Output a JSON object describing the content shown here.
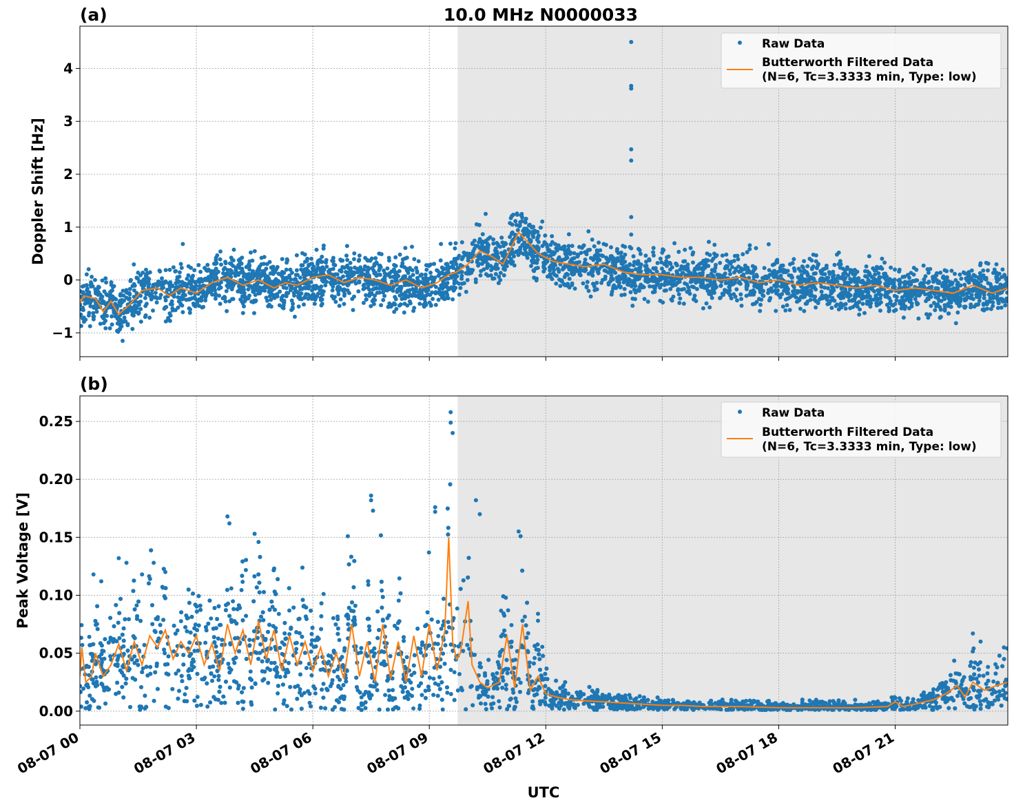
{
  "figure": {
    "title": "10.0 MHz N0000033",
    "xlabel": "UTC",
    "x_tick_labels": [
      "08-07 00",
      "08-07 03",
      "08-07 06",
      "08-07 09",
      "08-07 12",
      "08-07 15",
      "08-07 18",
      "08-07 21"
    ],
    "colors": {
      "raw": "#1f77b4",
      "filtered": "#ff7f0e",
      "shade": "#e7e7e7",
      "grid": "#b0b0b0"
    }
  },
  "chart_data": [
    {
      "panel_label": "(a)",
      "type": "scatter",
      "ylabel": "Doppler Shift [Hz]",
      "xlim_hours_utc": [
        0,
        23.9
      ],
      "ylim": [
        -1.45,
        4.8
      ],
      "y_ticks": [
        -1,
        0,
        1,
        2,
        3,
        4
      ],
      "y_tick_labels": [
        "−1",
        "0",
        "1",
        "2",
        "3",
        "4"
      ],
      "shaded_x_range_hours_utc": [
        9.73,
        23.9
      ],
      "grid": true,
      "legend_position": "top-right",
      "legend": [
        "Raw Data",
        "Butterworth Filtered Data",
        "(N=6, Tc=3.3333 min, Type: low)"
      ],
      "series": [
        {
          "name": "Raw Data",
          "kind": "points",
          "spread": 0.23
        },
        {
          "name": "Butterworth Filtered Data",
          "kind": "line"
        }
      ],
      "filtered_curve": {
        "x": [
          0,
          0.1,
          0.4,
          0.6,
          0.8,
          1.0,
          1.3,
          1.6,
          2.0,
          2.3,
          2.6,
          3.0,
          3.4,
          3.8,
          4.2,
          4.6,
          5.0,
          5.3,
          5.6,
          6.0,
          6.4,
          6.8,
          7.2,
          7.6,
          8.0,
          8.4,
          8.8,
          9.2,
          9.5,
          9.7,
          10.0,
          10.3,
          10.6,
          10.9,
          11.1,
          11.3,
          11.5,
          11.8,
          12.2,
          12.6,
          13.0,
          13.5,
          14.0,
          14.5,
          15.0,
          15.5,
          16.0,
          16.5,
          17.0,
          17.5,
          18.0,
          18.5,
          19.0,
          19.5,
          20.0,
          20.5,
          21.0,
          21.5,
          22.0,
          22.5,
          23.0,
          23.5,
          23.9
        ],
        "y": [
          -0.45,
          -0.3,
          -0.35,
          -0.6,
          -0.4,
          -0.65,
          -0.45,
          -0.2,
          -0.15,
          -0.3,
          -0.15,
          -0.25,
          -0.05,
          0.05,
          -0.1,
          0.0,
          -0.15,
          -0.05,
          -0.1,
          0.05,
          0.1,
          -0.05,
          0.05,
          0.0,
          -0.1,
          0.0,
          -0.15,
          -0.05,
          0.1,
          0.15,
          0.3,
          0.55,
          0.45,
          0.3,
          0.6,
          0.9,
          0.75,
          0.5,
          0.35,
          0.3,
          0.25,
          0.3,
          0.15,
          0.1,
          0.1,
          0.05,
          0.05,
          0.0,
          0.05,
          -0.05,
          0.0,
          -0.1,
          -0.05,
          -0.1,
          -0.15,
          -0.1,
          -0.2,
          -0.15,
          -0.2,
          -0.25,
          -0.1,
          -0.25,
          -0.15
        ]
      },
      "outlier_points": {
        "x": [
          1.1,
          2.65,
          4.4,
          7.4,
          9.3,
          10.45,
          11.1,
          13.1,
          14.2,
          14.2,
          14.2,
          14.2,
          14.2,
          14.2,
          14.2,
          14.2,
          16.2,
          19.5
        ],
        "y": [
          -1.15,
          0.68,
          0.52,
          0.38,
          0.68,
          1.25,
          1.17,
          0.92,
          4.5,
          3.67,
          3.62,
          2.47,
          2.26,
          1.19,
          0.86,
          0.6,
          0.72,
          0.48
        ]
      }
    },
    {
      "panel_label": "(b)",
      "type": "scatter",
      "ylabel": "Peak Voltage [V]",
      "xlim_hours_utc": [
        0,
        23.9
      ],
      "ylim": [
        -0.012,
        0.272
      ],
      "y_ticks": [
        0.0,
        0.05,
        0.1,
        0.15,
        0.2,
        0.25
      ],
      "y_tick_labels": [
        "0.00",
        "0.05",
        "0.10",
        "0.15",
        "0.20",
        "0.25"
      ],
      "shaded_x_range_hours_utc": [
        9.73,
        23.9
      ],
      "grid": true,
      "legend_position": "top-right",
      "legend": [
        "Raw Data",
        "Butterworth Filtered Data",
        "(N=6, Tc=3.3333 min, Type: low)"
      ],
      "series": [
        {
          "name": "Raw Data",
          "kind": "points"
        },
        {
          "name": "Butterworth Filtered Data",
          "kind": "line"
        }
      ],
      "filtered_curve": {
        "x": [
          0,
          0.05,
          0.15,
          0.3,
          0.4,
          0.6,
          0.8,
          1.0,
          1.2,
          1.4,
          1.6,
          1.8,
          2.0,
          2.2,
          2.4,
          2.6,
          2.8,
          3.0,
          3.2,
          3.4,
          3.6,
          3.8,
          4.0,
          4.2,
          4.4,
          4.6,
          4.8,
          5.0,
          5.2,
          5.4,
          5.6,
          5.8,
          6.0,
          6.2,
          6.4,
          6.6,
          6.8,
          7.0,
          7.2,
          7.4,
          7.6,
          7.8,
          8.0,
          8.2,
          8.4,
          8.6,
          8.8,
          9.0,
          9.2,
          9.4,
          9.5,
          9.6,
          9.7,
          9.8,
          10.0,
          10.1,
          10.3,
          10.5,
          10.8,
          11.0,
          11.2,
          11.4,
          11.6,
          11.8,
          12.0,
          12.3,
          12.6,
          13.0,
          13.5,
          14.0,
          14.5,
          15.0,
          15.5,
          16.0,
          17.0,
          18.0,
          19.0,
          20.0,
          20.8,
          21.0,
          21.2,
          21.5,
          22.0,
          22.3,
          22.6,
          22.8,
          23.0,
          23.3,
          23.6,
          23.9
        ],
        "y": [
          0.03,
          0.055,
          0.025,
          0.03,
          0.05,
          0.03,
          0.04,
          0.058,
          0.035,
          0.06,
          0.04,
          0.065,
          0.055,
          0.07,
          0.045,
          0.06,
          0.05,
          0.065,
          0.04,
          0.058,
          0.035,
          0.075,
          0.05,
          0.07,
          0.04,
          0.078,
          0.045,
          0.07,
          0.035,
          0.065,
          0.04,
          0.06,
          0.035,
          0.055,
          0.03,
          0.05,
          0.028,
          0.075,
          0.03,
          0.06,
          0.025,
          0.075,
          0.028,
          0.06,
          0.025,
          0.065,
          0.03,
          0.075,
          0.035,
          0.07,
          0.15,
          0.06,
          0.045,
          0.05,
          0.095,
          0.04,
          0.025,
          0.02,
          0.025,
          0.065,
          0.02,
          0.075,
          0.018,
          0.03,
          0.015,
          0.012,
          0.01,
          0.009,
          0.008,
          0.007,
          0.006,
          0.005,
          0.005,
          0.004,
          0.004,
          0.003,
          0.003,
          0.003,
          0.004,
          0.008,
          0.004,
          0.006,
          0.01,
          0.015,
          0.022,
          0.012,
          0.025,
          0.018,
          0.022,
          0.025
        ]
      },
      "outlier_points": {
        "x": [
          0.35,
          0.55,
          1.0,
          1.2,
          1.6,
          1.9,
          2.2,
          3.8,
          3.85,
          4.5,
          4.6,
          6.9,
          7.5,
          7.5,
          7.55,
          9.15,
          9.15,
          9.55,
          9.55,
          9.6,
          10.2,
          10.3,
          11.3,
          11.35,
          11.8,
          11.8,
          23.0,
          23.2,
          23.8
        ],
        "y": [
          0.118,
          0.112,
          0.132,
          0.128,
          0.118,
          0.128,
          0.12,
          0.168,
          0.162,
          0.153,
          0.146,
          0.151,
          0.186,
          0.182,
          0.173,
          0.176,
          0.172,
          0.258,
          0.249,
          0.24,
          0.182,
          0.17,
          0.155,
          0.151,
          0.084,
          0.078,
          0.067,
          0.06,
          0.055
        ]
      }
    }
  ]
}
